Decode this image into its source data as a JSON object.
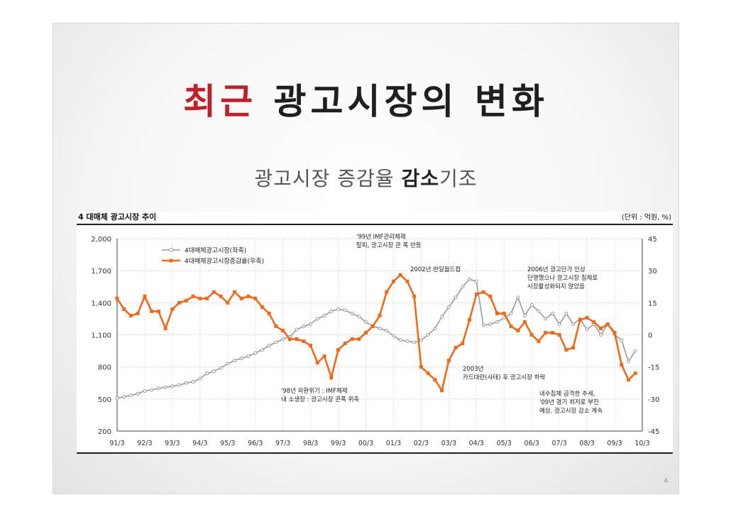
{
  "slide": {
    "title_accent": "최근",
    "title_rest": " 광고시장의 변화",
    "subtitle_pre": "광고시장 증감율 ",
    "subtitle_strong": "감소",
    "subtitle_post": "기조",
    "page_number": "4",
    "colors": {
      "accent": "#c0202a",
      "orange": "#f06a1c",
      "gray": "#9a9a9a"
    }
  },
  "chart_data": {
    "type": "line",
    "title": "4 대매체 광고시장 추이",
    "unit_label": "(단위 : 억원, %)",
    "x_ticks": [
      "91/3",
      "92/3",
      "93/3",
      "94/3",
      "95/3",
      "96/3",
      "97/3",
      "98/3",
      "99/3",
      "00/3",
      "01/3",
      "02/3",
      "03/3",
      "04/3",
      "05/3",
      "06/3",
      "07/3",
      "08/3",
      "09/3",
      "10/3"
    ],
    "x_range": [
      0,
      76
    ],
    "y_left": {
      "ticks": [
        200,
        500,
        800,
        1100,
        1400,
        1700,
        2000
      ],
      "labels": [
        "200",
        "500",
        "800",
        "1,100",
        "1,400",
        "1,700",
        "2,000"
      ],
      "range": [
        200,
        2000
      ]
    },
    "y_right": {
      "ticks": [
        -45,
        -30,
        -15,
        0,
        15,
        30,
        45
      ],
      "labels": [
        "-45",
        "-30",
        "-15",
        "0",
        "15",
        "30",
        "45"
      ],
      "range": [
        -45,
        45
      ]
    },
    "series": [
      {
        "name": "4대매체광고시장(좌축)",
        "axis": "left",
        "color": "#9a9a9a",
        "values": [
          510,
          520,
          535,
          550,
          575,
          585,
          600,
          610,
          620,
          630,
          650,
          660,
          690,
          740,
          760,
          790,
          830,
          860,
          880,
          900,
          930,
          960,
          1000,
          1030,
          1060,
          1080,
          1150,
          1180,
          1200,
          1250,
          1280,
          1320,
          1340,
          1330,
          1300,
          1270,
          1220,
          1180,
          1160,
          1140,
          1090,
          1050,
          1040,
          1030,
          1050,
          1100,
          1160,
          1270,
          1360,
          1450,
          1550,
          1620,
          1600,
          1190,
          1200,
          1220,
          1260,
          1300,
          1450,
          1280,
          1380,
          1320,
          1250,
          1300,
          1200,
          1300,
          1200,
          1250,
          1150,
          1200,
          1100,
          1200,
          1100,
          1050,
          850,
          950
        ]
      },
      {
        "name": "4대매체광고시장증감율(우축)",
        "axis": "right",
        "color": "#f06a1c",
        "values": [
          17,
          12,
          9,
          10,
          18,
          11,
          11,
          3,
          12,
          15,
          16,
          18,
          17,
          17,
          20,
          18,
          15,
          20,
          17,
          18,
          17,
          13,
          10,
          4,
          2,
          -2,
          -2,
          -3,
          -5,
          -13,
          -10,
          -20,
          -7,
          -4,
          -2,
          -2,
          1,
          4,
          9,
          20,
          25,
          28,
          25,
          18,
          -15,
          -18,
          -21,
          -26,
          -12,
          -6,
          -4,
          7,
          19,
          20,
          18,
          10,
          10,
          4,
          2,
          6,
          0,
          -3,
          1,
          1,
          0,
          -7,
          -6,
          7,
          8,
          6,
          3,
          5,
          1,
          -14,
          -21,
          -18
        ]
      }
    ],
    "legend": "top-left",
    "annotations": [
      "'99년 IMF관리체제 탈피, 광고시장 큰 폭 반등",
      "2002년 한일월드컵",
      "2006년 광고단가 인상 단행했으나 광고시장 침체로 시장활성화되지 않았음",
      "2003년 카드대란(사태) 후 광고시장 하락",
      "'98년 외환위기 : IMF체제 내 소생장 : 광고시장 큰폭 위축",
      "내수침체 급격한 추세, '09년 경기 최저로 부진 예상, 광고시장 감소 계속"
    ]
  }
}
